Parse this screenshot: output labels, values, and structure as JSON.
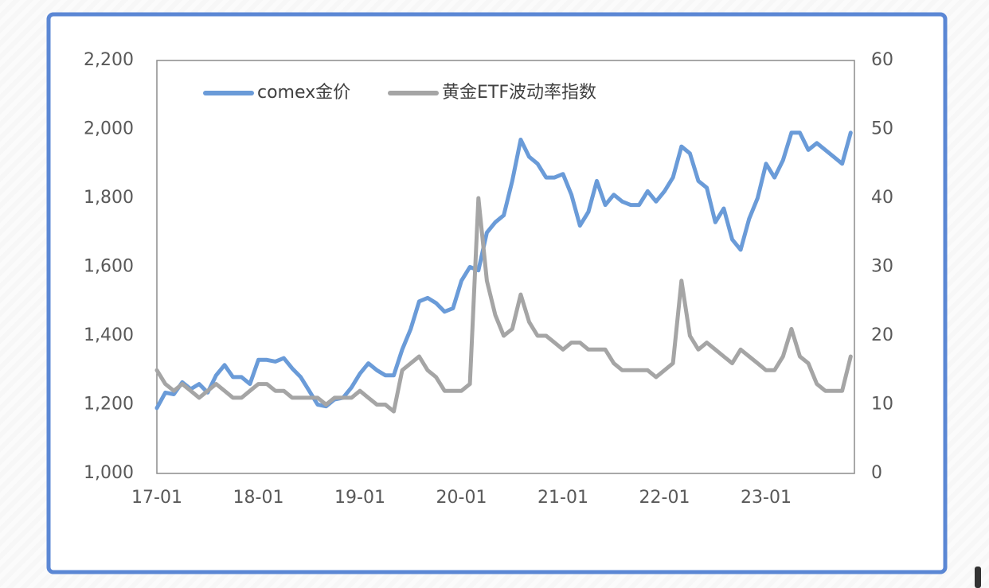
{
  "chart_data": {
    "type": "line",
    "x": [
      "17-01",
      "17-02",
      "17-03",
      "17-04",
      "17-05",
      "17-06",
      "17-07",
      "17-08",
      "17-09",
      "17-10",
      "17-11",
      "17-12",
      "18-01",
      "18-02",
      "18-03",
      "18-04",
      "18-05",
      "18-06",
      "18-07",
      "18-08",
      "18-09",
      "18-10",
      "18-11",
      "18-12",
      "19-01",
      "19-02",
      "19-03",
      "19-04",
      "19-05",
      "19-06",
      "19-07",
      "19-08",
      "19-09",
      "19-10",
      "19-11",
      "19-12",
      "20-01",
      "20-02",
      "20-03",
      "20-04",
      "20-05",
      "20-06",
      "20-07",
      "20-08",
      "20-09",
      "20-10",
      "20-11",
      "20-12",
      "21-01",
      "21-02",
      "21-03",
      "21-04",
      "21-05",
      "21-06",
      "21-07",
      "21-08",
      "21-09",
      "21-10",
      "21-11",
      "21-12",
      "22-01",
      "22-02",
      "22-03",
      "22-04",
      "22-05",
      "22-06",
      "22-07",
      "22-08",
      "22-09",
      "22-10",
      "22-11",
      "22-12",
      "23-01",
      "23-02",
      "23-03",
      "23-04",
      "23-05",
      "23-06",
      "23-07",
      "23-08",
      "23-09",
      "23-10",
      "23-11"
    ],
    "xticks": [
      "17-01",
      "18-01",
      "19-01",
      "20-01",
      "21-01",
      "22-01",
      "23-01"
    ],
    "series": [
      {
        "name": "comex金价",
        "color": "#6a9bd8",
        "axis": "y",
        "values": [
          1190,
          1235,
          1230,
          1265,
          1245,
          1260,
          1235,
          1285,
          1315,
          1280,
          1280,
          1260,
          1330,
          1330,
          1325,
          1335,
          1305,
          1280,
          1240,
          1200,
          1195,
          1215,
          1220,
          1250,
          1290,
          1320,
          1300,
          1285,
          1285,
          1360,
          1420,
          1500,
          1510,
          1495,
          1470,
          1480,
          1560,
          1600,
          1590,
          1700,
          1730,
          1750,
          1850,
          1970,
          1920,
          1900,
          1860,
          1860,
          1870,
          1810,
          1720,
          1760,
          1850,
          1780,
          1810,
          1790,
          1780,
          1780,
          1820,
          1790,
          1820,
          1860,
          1950,
          1930,
          1850,
          1830,
          1730,
          1770,
          1680,
          1650,
          1740,
          1800,
          1900,
          1860,
          1910,
          1990,
          1990,
          1940,
          1960,
          1940,
          1920,
          1900,
          1990
        ]
      },
      {
        "name": "黄金ETF波动率指数",
        "color": "#a5a5a5",
        "axis": "y2",
        "values": [
          15,
          13,
          12,
          13,
          12,
          11,
          12,
          13,
          12,
          11,
          11,
          12,
          13,
          13,
          12,
          12,
          11,
          11,
          11,
          11,
          10,
          11,
          11,
          11,
          12,
          11,
          10,
          10,
          9,
          15,
          16,
          17,
          15,
          14,
          12,
          12,
          12,
          13,
          40,
          28,
          23,
          20,
          21,
          26,
          22,
          20,
          20,
          19,
          18,
          19,
          19,
          18,
          18,
          18,
          16,
          15,
          15,
          15,
          15,
          14,
          15,
          16,
          28,
          20,
          18,
          19,
          18,
          17,
          16,
          18,
          17,
          16,
          15,
          15,
          17,
          21,
          17,
          16,
          13,
          12,
          12,
          12,
          17
        ]
      }
    ],
    "ylim": [
      1000,
      2200
    ],
    "yticks": [
      {
        "value": 1000,
        "label": "1,000"
      },
      {
        "value": 1200,
        "label": "1,200"
      },
      {
        "value": 1400,
        "label": "1,400"
      },
      {
        "value": 1600,
        "label": "1,600"
      },
      {
        "value": 1800,
        "label": "1,800"
      },
      {
        "value": 2000,
        "label": "2,000"
      },
      {
        "value": 2200,
        "label": "2,200"
      }
    ],
    "y2lim": [
      0,
      60
    ],
    "y2ticks": [
      0,
      10,
      20,
      30,
      40,
      50,
      60
    ],
    "legend": "top-left"
  }
}
